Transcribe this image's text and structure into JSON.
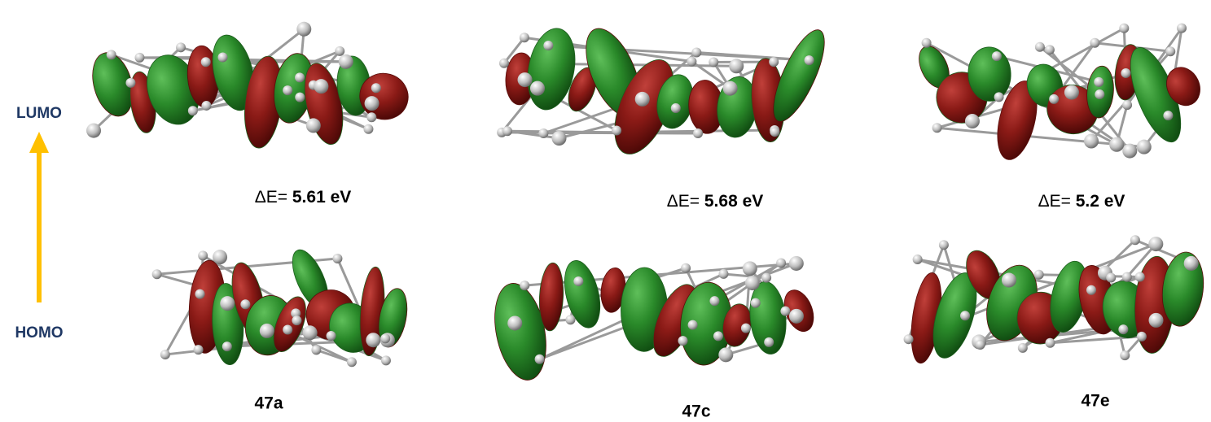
{
  "axis_labels": {
    "top": "LUMO",
    "bottom": "HOMO"
  },
  "compounds": [
    {
      "name": "47a",
      "gap_prefix": "ΔE=",
      "gap_value": "5.61 eV"
    },
    {
      "name": "47c",
      "gap_prefix": "ΔE=",
      "gap_value": "5.68 eV"
    },
    {
      "name": "47e",
      "gap_prefix": "ΔE=",
      "gap_value": "5.2 eV"
    }
  ]
}
